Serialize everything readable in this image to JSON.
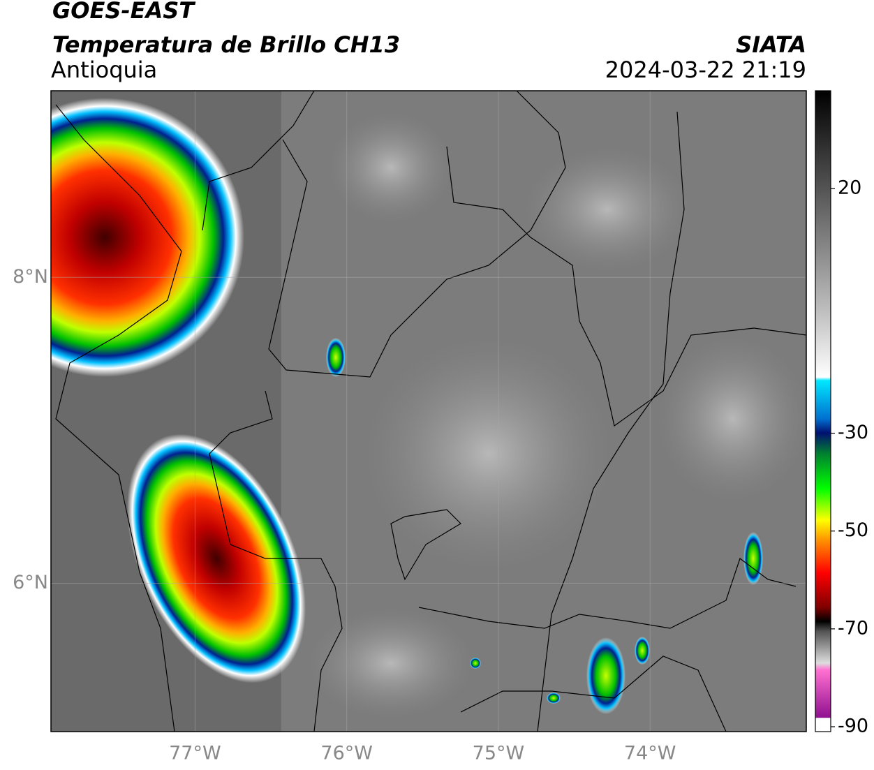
{
  "header": {
    "title": "GOES-EAST",
    "subtitle": "Temperatura de Brillo CH13",
    "region": "Antioquia",
    "source": "SIATA",
    "datetime": "2024-03-22 21:19"
  },
  "map": {
    "xlim": [
      -77.95,
      -72.97
    ],
    "ylim": [
      5.03,
      9.22
    ],
    "xticks": [
      {
        "value": -77,
        "label": "77°W"
      },
      {
        "value": -76,
        "label": "76°W"
      },
      {
        "value": -75,
        "label": "75°W"
      },
      {
        "value": -74,
        "label": "74°W"
      }
    ],
    "yticks": [
      {
        "value": 8,
        "label": "8°N"
      },
      {
        "value": 6,
        "label": "6°N"
      }
    ],
    "grid": true
  },
  "colorbar": {
    "ylim": [
      -91,
      40
    ],
    "yticks": [
      20,
      -30,
      -50,
      -70,
      -90
    ]
  }
}
